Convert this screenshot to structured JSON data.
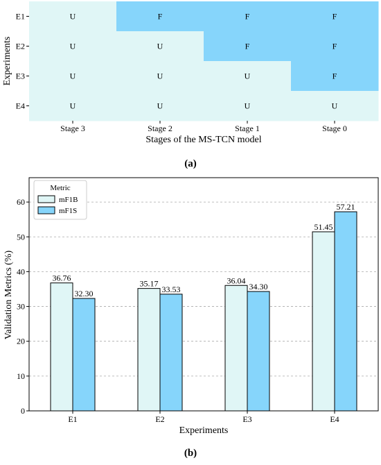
{
  "colors": {
    "unfrozen": "#e0f6f6",
    "frozen": "#86d5fb",
    "bar_mf1b": "#e0f6f6",
    "bar_mf1s": "#86d5fb",
    "grid": "#aaaaaa",
    "axis": "#000000"
  },
  "panel_a": {
    "caption": "(a)",
    "xlabel": "Stages of the MS-TCN model",
    "ylabel": "Experiments"
  },
  "panel_b": {
    "caption": "(b)",
    "xlabel": "Experiments",
    "ylabel": "Validation Metrics (%)",
    "legend_title": "Metric"
  },
  "chart_data": [
    {
      "type": "heatmap",
      "title": "",
      "xlabel": "Stages of the MS-TCN model",
      "ylabel": "Experiments",
      "x_categories": [
        "Stage 3",
        "Stage 2",
        "Stage 1",
        "Stage 0"
      ],
      "y_categories": [
        "E1",
        "E2",
        "E3",
        "E4"
      ],
      "cells": [
        [
          "U",
          "F",
          "F",
          "F"
        ],
        [
          "U",
          "U",
          "F",
          "F"
        ],
        [
          "U",
          "U",
          "U",
          "F"
        ],
        [
          "U",
          "U",
          "U",
          "U"
        ]
      ],
      "grid": false
    },
    {
      "type": "bar",
      "title": "",
      "xlabel": "Experiments",
      "ylabel": "Validation Metrics (%)",
      "categories": [
        "E1",
        "E2",
        "E3",
        "E4"
      ],
      "series": [
        {
          "name": "mF1B",
          "values": [
            36.76,
            35.17,
            36.04,
            51.45
          ],
          "labels": [
            "36.76",
            "35.17",
            "36.04",
            "51.45"
          ]
        },
        {
          "name": "mF1S",
          "values": [
            32.3,
            33.53,
            34.3,
            57.21
          ],
          "labels": [
            "32.30",
            "33.53",
            "34.30",
            "57.21"
          ]
        }
      ],
      "ylim": [
        0,
        67
      ],
      "yticks": [
        0,
        10,
        20,
        30,
        40,
        50,
        60
      ],
      "grid": true,
      "legend": {
        "title": "Metric",
        "position": "top-left"
      }
    }
  ]
}
